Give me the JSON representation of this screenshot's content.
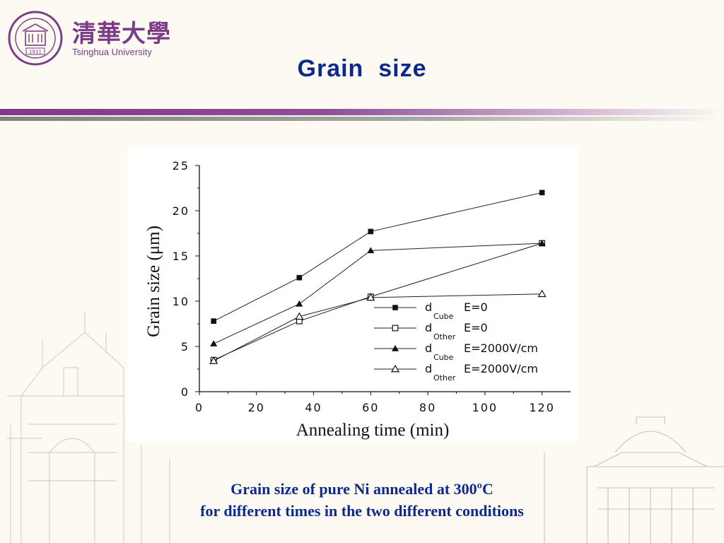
{
  "header": {
    "title": "Grain  size",
    "logo_text_cn": "清華大學",
    "logo_text_en": "Tsinghua University",
    "seal_year": "1911",
    "seal_text": "TSINGHUA UNIVERSITY"
  },
  "caption": {
    "line1": "Grain size of pure Ni annealed at 300ºC",
    "line2": "for different times in the two different conditions"
  },
  "colors": {
    "title": "#0c2a8c",
    "logo": "#7b3b86",
    "bar_purple": "#7e3a88",
    "background": "#fdfaf3"
  },
  "chart_data": {
    "type": "line",
    "xlabel": "Annealing time (min)",
    "ylabel": "Grain size (μm)",
    "xlim": [
      0,
      130
    ],
    "ylim": [
      0,
      25
    ],
    "xticks": [
      0,
      20,
      40,
      60,
      80,
      100,
      120
    ],
    "yticks": [
      0,
      5,
      10,
      15,
      20,
      25
    ],
    "grid": false,
    "legend_position": "bottom-right",
    "series": [
      {
        "name": "d",
        "sub": "Cube",
        "condition": "E=0",
        "marker": "filled-square",
        "x": [
          5,
          35,
          60,
          120
        ],
        "y": [
          7.8,
          12.6,
          17.7,
          22.0
        ]
      },
      {
        "name": "d",
        "sub": "Other",
        "condition": "E=0",
        "marker": "open-square",
        "x": [
          5,
          35,
          60,
          120
        ],
        "y": [
          3.5,
          7.8,
          10.5,
          16.4
        ]
      },
      {
        "name": "d",
        "sub": "Cube",
        "condition": "E=2000V/cm",
        "marker": "filled-triangle",
        "x": [
          5,
          35,
          60,
          120
        ],
        "y": [
          5.3,
          9.7,
          15.6,
          16.4
        ]
      },
      {
        "name": "d",
        "sub": "Other",
        "condition": "E=2000V/cm",
        "marker": "open-triangle",
        "x": [
          5,
          35,
          60,
          120
        ],
        "y": [
          3.4,
          8.3,
          10.4,
          10.8
        ]
      }
    ]
  }
}
